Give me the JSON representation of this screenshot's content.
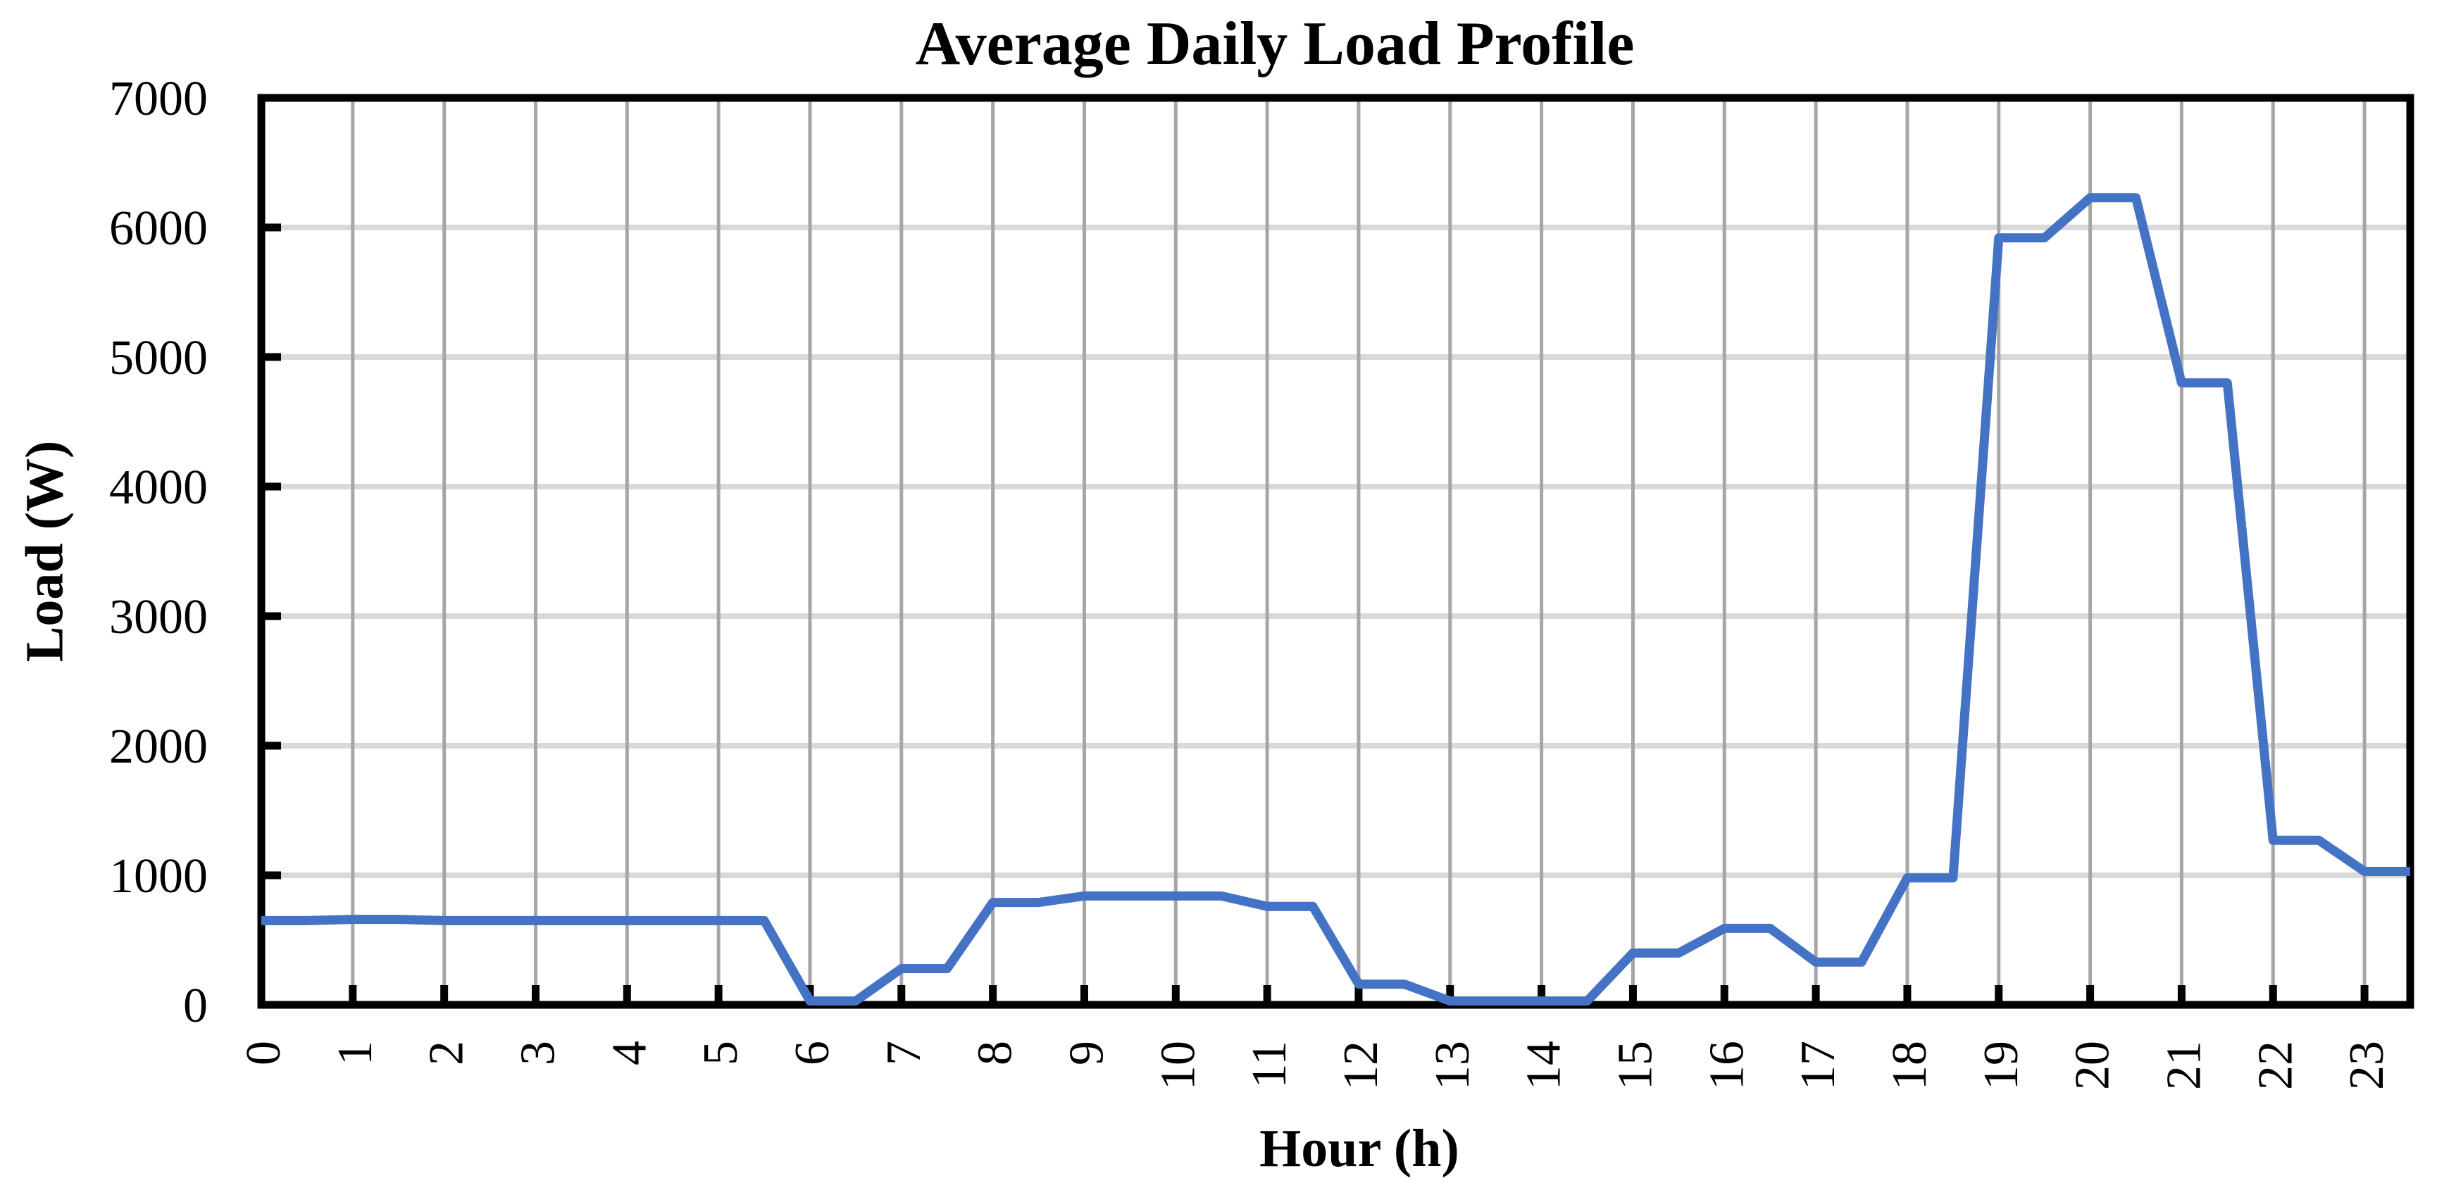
{
  "chart_data": {
    "type": "line",
    "title": "Average Daily Load Profile",
    "xlabel": "Hour (h)",
    "ylabel": "Load (W)",
    "x": [
      0,
      0.5,
      1,
      1.5,
      2,
      2.5,
      3,
      3.5,
      4,
      4.5,
      5,
      5.5,
      6,
      6.5,
      7,
      7.5,
      8,
      8.5,
      9,
      9.5,
      10,
      10.5,
      11,
      11.5,
      12,
      12.5,
      13,
      13.5,
      14,
      14.5,
      15,
      15.5,
      16,
      16.5,
      17,
      17.5,
      18,
      18.5,
      19,
      19.5,
      20,
      20.5,
      21,
      21.5,
      22,
      22.5,
      23,
      23.5
    ],
    "values": [
      650,
      650,
      660,
      660,
      650,
      650,
      650,
      650,
      650,
      650,
      650,
      650,
      30,
      30,
      280,
      280,
      790,
      790,
      840,
      840,
      840,
      840,
      760,
      760,
      160,
      160,
      30,
      30,
      30,
      30,
      400,
      400,
      590,
      590,
      330,
      330,
      980,
      980,
      5920,
      5920,
      6230,
      6230,
      4800,
      4800,
      1270,
      1270,
      1030,
      1030
    ],
    "xlim": [
      0,
      23.5
    ],
    "ylim": [
      0,
      7000
    ],
    "xticks": [
      0,
      1,
      2,
      3,
      4,
      5,
      6,
      7,
      8,
      9,
      10,
      11,
      12,
      13,
      14,
      15,
      16,
      17,
      18,
      19,
      20,
      21,
      22,
      23
    ],
    "yticks": [
      0,
      1000,
      2000,
      3000,
      4000,
      5000,
      6000,
      7000
    ],
    "grid": {
      "horizontal": true,
      "vertical": true
    },
    "legend_position": "none",
    "series_color": "#4472C4",
    "horizontal_grid_color": "#D9D9D9",
    "vertical_grid_color": "#A6A6A6",
    "axis_color": "#000000",
    "background_color": "#FFFFFF"
  }
}
